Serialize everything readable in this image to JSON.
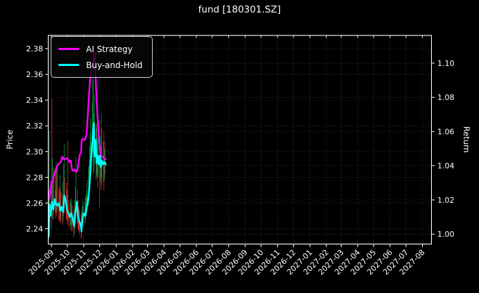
{
  "title": "fund [180301.SZ]",
  "legend": {
    "items": [
      {
        "label": "AI Strategy",
        "color": "#ff00ff"
      },
      {
        "label": "Buy-and-Hold",
        "color": "#00ffff"
      }
    ]
  },
  "colors": {
    "background": "#000000",
    "text": "#ffffff",
    "grid": "rgba(255,255,255,0.32)",
    "spine": "#ffffff",
    "candle_up": "#00a54e",
    "candle_down": "#f42a2a",
    "ai_strategy": "#ff00ff",
    "buy_and_hold": "#00ffff"
  },
  "chart_data": {
    "type": "candlestick+line",
    "title": "fund [180301.SZ]",
    "grid": true,
    "legend_position": "upper-left",
    "x_axis": {
      "start_date": "2025-08-27",
      "domain": [
        "2025-08-26",
        "2027-08-18"
      ],
      "tick_labels": [
        "2025-09",
        "2025-10",
        "2025-11",
        "2025-12",
        "2026-01",
        "2026-02",
        "2026-03",
        "2026-04",
        "2026-05",
        "2026-06",
        "2026-07",
        "2026-08",
        "2026-09",
        "2026-10",
        "2026-11",
        "2026-12",
        "2027-01",
        "2027-02",
        "2027-03",
        "2027-04",
        "2027-05",
        "2027-06",
        "2027-07",
        "2027-08"
      ]
    },
    "y_left": {
      "label": "Price",
      "ticks": [
        "2.24",
        "2.26",
        "2.28",
        "2.30",
        "2.32",
        "2.34",
        "2.36",
        "2.38"
      ],
      "range": [
        2.2281,
        2.3903
      ]
    },
    "y_right": {
      "label": "Return",
      "ticks": [
        "1.00",
        "1.02",
        "1.04",
        "1.06",
        "1.08",
        "1.10"
      ],
      "range": [
        0.9942,
        1.1162
      ]
    },
    "candles": {
      "columns": [
        "day_offset",
        "open",
        "high",
        "low",
        "close"
      ],
      "rows": [
        [
          0,
          2.238,
          2.262,
          2.232,
          2.243
        ],
        [
          1,
          2.243,
          2.316,
          2.24,
          2.259
        ],
        [
          2,
          2.259,
          2.266,
          2.244,
          2.25
        ],
        [
          5,
          2.25,
          2.27,
          2.24,
          2.258
        ],
        [
          6,
          2.258,
          2.341,
          2.25,
          2.255
        ],
        [
          7,
          2.255,
          2.295,
          2.248,
          2.261
        ],
        [
          8,
          2.261,
          2.276,
          2.247,
          2.258
        ],
        [
          9,
          2.258,
          2.288,
          2.252,
          2.263
        ],
        [
          12,
          2.263,
          2.284,
          2.252,
          2.259
        ],
        [
          13,
          2.259,
          2.27,
          2.248,
          2.258
        ],
        [
          14,
          2.258,
          2.292,
          2.253,
          2.261
        ],
        [
          15,
          2.261,
          2.286,
          2.25,
          2.259
        ],
        [
          16,
          2.259,
          2.289,
          2.253,
          2.26
        ],
        [
          19,
          2.26,
          2.273,
          2.247,
          2.256
        ],
        [
          20,
          2.256,
          2.27,
          2.245,
          2.254
        ],
        [
          21,
          2.254,
          2.282,
          2.248,
          2.257
        ],
        [
          22,
          2.257,
          2.272,
          2.246,
          2.255
        ],
        [
          23,
          2.255,
          2.268,
          2.244,
          2.253
        ],
        [
          26,
          2.253,
          2.276,
          2.246,
          2.255
        ],
        [
          27,
          2.255,
          2.266,
          2.243,
          2.253
        ],
        [
          28,
          2.253,
          2.29,
          2.25,
          2.264
        ],
        [
          29,
          2.264,
          2.306,
          2.256,
          2.266
        ],
        [
          30,
          2.266,
          2.28,
          2.252,
          2.262
        ],
        [
          33,
          2.262,
          2.276,
          2.248,
          2.258
        ],
        [
          34,
          2.258,
          2.27,
          2.246,
          2.254
        ],
        [
          35,
          2.254,
          2.266,
          2.244,
          2.253
        ],
        [
          36,
          2.253,
          2.308,
          2.247,
          2.252
        ],
        [
          37,
          2.252,
          2.262,
          2.242,
          2.25
        ],
        [
          40,
          2.25,
          2.26,
          2.24,
          2.249
        ],
        [
          41,
          2.249,
          2.262,
          2.242,
          2.251
        ],
        [
          42,
          2.251,
          2.264,
          2.243,
          2.252
        ],
        [
          43,
          2.252,
          2.26,
          2.238,
          2.249
        ],
        [
          44,
          2.249,
          2.258,
          2.238,
          2.247
        ],
        [
          47,
          2.247,
          2.254,
          2.233,
          2.242
        ],
        [
          48,
          2.242,
          2.256,
          2.236,
          2.246
        ],
        [
          49,
          2.246,
          2.262,
          2.24,
          2.251
        ],
        [
          50,
          2.251,
          2.272,
          2.244,
          2.257
        ],
        [
          51,
          2.257,
          2.296,
          2.25,
          2.261
        ],
        [
          54,
          2.261,
          2.27,
          2.244,
          2.252
        ],
        [
          55,
          2.252,
          2.262,
          2.24,
          2.248
        ],
        [
          56,
          2.248,
          2.258,
          2.238,
          2.246
        ],
        [
          57,
          2.246,
          2.256,
          2.238,
          2.245
        ],
        [
          58,
          2.245,
          2.254,
          2.236,
          2.243
        ],
        [
          61,
          2.243,
          2.252,
          2.232,
          2.238
        ],
        [
          62,
          2.238,
          2.254,
          2.234,
          2.246
        ],
        [
          63,
          2.246,
          2.258,
          2.24,
          2.25
        ],
        [
          64,
          2.25,
          2.262,
          2.244,
          2.252
        ],
        [
          65,
          2.252,
          2.258,
          2.242,
          2.25
        ],
        [
          68,
          2.25,
          2.26,
          2.244,
          2.251
        ],
        [
          69,
          2.251,
          2.264,
          2.246,
          2.254
        ],
        [
          70,
          2.254,
          2.266,
          2.248,
          2.257
        ],
        [
          71,
          2.257,
          2.27,
          2.25,
          2.26
        ],
        [
          72,
          2.26,
          2.278,
          2.253,
          2.265
        ],
        [
          75,
          2.265,
          2.288,
          2.258,
          2.273
        ],
        [
          76,
          2.273,
          2.294,
          2.262,
          2.28
        ],
        [
          77,
          2.28,
          2.304,
          2.27,
          2.29
        ],
        [
          78,
          2.29,
          2.314,
          2.278,
          2.299
        ],
        [
          79,
          2.299,
          2.326,
          2.288,
          2.308
        ],
        [
          82,
          2.308,
          2.338,
          2.296,
          2.316
        ],
        [
          83,
          2.316,
          2.36,
          2.3,
          2.322
        ],
        [
          84,
          2.322,
          2.356,
          2.282,
          2.298
        ],
        [
          85,
          2.298,
          2.33,
          2.284,
          2.305
        ],
        [
          86,
          2.305,
          2.344,
          2.29,
          2.309
        ],
        [
          89,
          2.309,
          2.322,
          2.278,
          2.291
        ],
        [
          90,
          2.291,
          2.318,
          2.28,
          2.295
        ],
        [
          91,
          2.295,
          2.322,
          2.282,
          2.297
        ],
        [
          92,
          2.297,
          2.31,
          2.272,
          2.291
        ],
        [
          93,
          2.291,
          2.316,
          2.28,
          2.296
        ],
        [
          96,
          2.296,
          2.306,
          2.256,
          2.289
        ],
        [
          97,
          2.289,
          2.312,
          2.276,
          2.293
        ],
        [
          98,
          2.293,
          2.304,
          2.27,
          2.29
        ],
        [
          99,
          2.29,
          2.33,
          2.28,
          2.292
        ],
        [
          100,
          2.292,
          2.318,
          2.274,
          2.29
        ],
        [
          103,
          2.29,
          2.308,
          2.276,
          2.292
        ],
        [
          104,
          2.292,
          2.316,
          2.27,
          2.29
        ],
        [
          105,
          2.29,
          2.302,
          2.278,
          2.291
        ],
        [
          106,
          2.291,
          2.308,
          2.282,
          2.29
        ]
      ]
    },
    "series": [
      {
        "name": "AI Strategy",
        "color": "#ff00ff",
        "width": 2.4,
        "axis": "price",
        "points": [
          [
            0,
            2.269
          ],
          [
            1.3,
            2.263
          ],
          [
            3.3,
            2.27
          ],
          [
            5.2,
            2.277
          ],
          [
            7.2,
            2.276
          ],
          [
            9.8,
            2.282
          ],
          [
            12.4,
            2.285
          ],
          [
            15,
            2.288
          ],
          [
            17.7,
            2.29
          ],
          [
            20.3,
            2.291
          ],
          [
            22.9,
            2.292
          ],
          [
            25.5,
            2.296
          ],
          [
            28.1,
            2.294
          ],
          [
            30.7,
            2.294
          ],
          [
            33.3,
            2.295
          ],
          [
            36,
            2.294
          ],
          [
            38.6,
            2.292
          ],
          [
            41.2,
            2.293
          ],
          [
            43.8,
            2.286
          ],
          [
            46.4,
            2.285
          ],
          [
            49,
            2.286
          ],
          [
            51.6,
            2.284
          ],
          [
            54.3,
            2.286
          ],
          [
            56.9,
            2.294
          ],
          [
            58.8,
            2.298
          ],
          [
            60.8,
            2.299
          ],
          [
            62.1,
            2.309
          ],
          [
            64.7,
            2.31
          ],
          [
            67.3,
            2.309
          ],
          [
            69.3,
            2.31
          ],
          [
            71.3,
            2.314
          ],
          [
            73.2,
            2.326
          ],
          [
            75.2,
            2.34
          ],
          [
            77.1,
            2.352
          ],
          [
            79.1,
            2.36
          ],
          [
            81.1,
            2.364
          ],
          [
            83,
            2.368
          ],
          [
            85,
            2.372
          ],
          [
            86.3,
            2.377
          ],
          [
            87.6,
            2.368
          ],
          [
            88.9,
            2.352
          ],
          [
            90.2,
            2.34
          ],
          [
            91.5,
            2.33
          ],
          [
            92.8,
            2.322
          ],
          [
            94.8,
            2.31
          ],
          [
            96.7,
            2.3
          ],
          [
            98.7,
            2.296
          ],
          [
            101.3,
            2.296
          ],
          [
            103.9,
            2.295
          ],
          [
            107.2,
            2.294
          ]
        ]
      },
      {
        "name": "Buy-and-Hold",
        "color": "#00ffff",
        "width": 2.4,
        "axis": "price",
        "points": [
          [
            0,
            2.234
          ],
          [
            1.3,
            2.259
          ],
          [
            3.3,
            2.25
          ],
          [
            5.9,
            2.261
          ],
          [
            8.5,
            2.255
          ],
          [
            11.1,
            2.263
          ],
          [
            13.7,
            2.259
          ],
          [
            16.3,
            2.258
          ],
          [
            19,
            2.26
          ],
          [
            21.6,
            2.254
          ],
          [
            24.2,
            2.257
          ],
          [
            26.8,
            2.253
          ],
          [
            29.4,
            2.266
          ],
          [
            32,
            2.262
          ],
          [
            34.6,
            2.254
          ],
          [
            37.3,
            2.252
          ],
          [
            39.9,
            2.249
          ],
          [
            42.5,
            2.252
          ],
          [
            45.1,
            2.248
          ],
          [
            47.7,
            2.242
          ],
          [
            50.3,
            2.252
          ],
          [
            53,
            2.261
          ],
          [
            54.9,
            2.25
          ],
          [
            56.9,
            2.246
          ],
          [
            59.5,
            2.244
          ],
          [
            61.7,
            2.238
          ],
          [
            63.4,
            2.248
          ],
          [
            66,
            2.252
          ],
          [
            68.7,
            2.25
          ],
          [
            71.3,
            2.256
          ],
          [
            73.9,
            2.262
          ],
          [
            76.5,
            2.272
          ],
          [
            79.1,
            2.288
          ],
          [
            81.7,
            2.305
          ],
          [
            83.7,
            2.318
          ],
          [
            85,
            2.322
          ],
          [
            86.3,
            2.296
          ],
          [
            88.3,
            2.309
          ],
          [
            90.2,
            2.291
          ],
          [
            92.2,
            2.297
          ],
          [
            94.1,
            2.29
          ],
          [
            96.1,
            2.297
          ],
          [
            98.1,
            2.288
          ],
          [
            100,
            2.293
          ],
          [
            102.6,
            2.29
          ],
          [
            105.3,
            2.292
          ],
          [
            107.2,
            2.29
          ]
        ]
      }
    ]
  }
}
